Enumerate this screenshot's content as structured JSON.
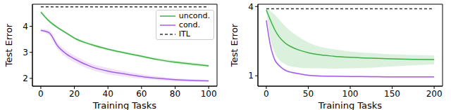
{
  "chart_data": [
    {
      "type": "line",
      "x_label": "Training Tasks",
      "y_label": "Test Error",
      "x": [
        0,
        5,
        10,
        15,
        20,
        30,
        40,
        50,
        60,
        70,
        80,
        90,
        100
      ],
      "xlim": [
        -5,
        105
      ],
      "xticks": [
        0,
        20,
        40,
        60,
        80,
        100
      ],
      "ylim": [
        1.7,
        4.85
      ],
      "yticks": [
        2,
        3,
        4
      ],
      "legend": "upper right",
      "series": [
        {
          "name": "uncond.",
          "color": "#3cb043",
          "line_style": "solid",
          "values": [
            4.55,
            4.2,
            3.95,
            3.75,
            3.55,
            3.3,
            3.12,
            2.98,
            2.85,
            2.72,
            2.62,
            2.55,
            2.48
          ],
          "lower": [
            4.5,
            4.15,
            3.9,
            3.7,
            3.5,
            3.25,
            3.07,
            2.93,
            2.8,
            2.67,
            2.56,
            2.49,
            2.42
          ],
          "upper": [
            4.6,
            4.25,
            4.0,
            3.8,
            3.6,
            3.35,
            3.17,
            3.03,
            2.9,
            2.77,
            2.68,
            2.61,
            2.54
          ]
        },
        {
          "name": "cond.",
          "color": "#a45ee5",
          "line_style": "solid",
          "values": [
            3.85,
            3.75,
            3.25,
            2.95,
            2.75,
            2.45,
            2.28,
            2.17,
            2.07,
            2.0,
            1.95,
            1.92,
            1.9
          ],
          "lower": [
            3.8,
            3.65,
            3.13,
            2.82,
            2.62,
            2.33,
            2.16,
            2.07,
            1.98,
            1.93,
            1.89,
            1.87,
            1.86
          ],
          "upper": [
            3.9,
            3.85,
            3.37,
            3.08,
            2.88,
            2.57,
            2.4,
            2.27,
            2.16,
            2.07,
            2.01,
            1.97,
            1.94
          ]
        },
        {
          "name": "ITL",
          "color": "#333333",
          "line_style": "dashed",
          "values": [
            4.75,
            4.75,
            4.75,
            4.75,
            4.75,
            4.75,
            4.75,
            4.75,
            4.75,
            4.75,
            4.75,
            4.75,
            4.75
          ]
        }
      ]
    },
    {
      "type": "line",
      "x_label": "Training Tasks",
      "y_label": "Test Error",
      "x": [
        0,
        5,
        10,
        15,
        20,
        25,
        30,
        40,
        50,
        60,
        80,
        100,
        125,
        150,
        175,
        200
      ],
      "xlim": [
        -10,
        210
      ],
      "xticks": [
        0,
        50,
        100,
        150,
        200
      ],
      "ylim": [
        0.55,
        4.1
      ],
      "yticks": [
        1,
        4
      ],
      "series": [
        {
          "name": "ITL",
          "color": "#333333",
          "line_style": "dashed",
          "values": [
            3.9,
            3.9,
            3.9,
            3.9,
            3.9,
            3.9,
            3.9,
            3.9,
            3.9,
            3.9,
            3.9,
            3.9,
            3.9,
            3.9,
            3.9,
            3.9
          ]
        },
        {
          "name": "uncond.",
          "color": "#3cb043",
          "line_style": "solid",
          "values": [
            3.85,
            3.4,
            3.0,
            2.7,
            2.5,
            2.35,
            2.25,
            2.1,
            2.0,
            1.93,
            1.85,
            1.8,
            1.76,
            1.73,
            1.71,
            1.7
          ],
          "lower": [
            3.8,
            2.6,
            2.0,
            1.7,
            1.55,
            1.45,
            1.4,
            1.35,
            1.33,
            1.32,
            1.31,
            1.32,
            1.35,
            1.4,
            1.45,
            1.5
          ],
          "upper": [
            3.9,
            3.8,
            3.65,
            3.45,
            3.25,
            3.05,
            2.9,
            2.65,
            2.45,
            2.3,
            2.15,
            2.05,
            1.98,
            1.93,
            1.9,
            1.88
          ]
        },
        {
          "name": "cond.",
          "color": "#a45ee5",
          "line_style": "solid",
          "values": [
            3.4,
            2.3,
            1.7,
            1.45,
            1.3,
            1.2,
            1.15,
            1.08,
            1.02,
            1.0,
            0.98,
            0.97,
            0.96,
            0.95,
            0.95,
            0.95
          ],
          "lower": [
            3.3,
            2.2,
            1.64,
            1.4,
            1.26,
            1.16,
            1.11,
            1.05,
            0.99,
            0.97,
            0.95,
            0.94,
            0.93,
            0.92,
            0.92,
            0.92
          ],
          "upper": [
            3.5,
            2.4,
            1.76,
            1.5,
            1.34,
            1.24,
            1.19,
            1.11,
            1.05,
            1.03,
            1.01,
            1.0,
            0.99,
            0.98,
            0.98,
            0.98
          ]
        }
      ]
    }
  ]
}
